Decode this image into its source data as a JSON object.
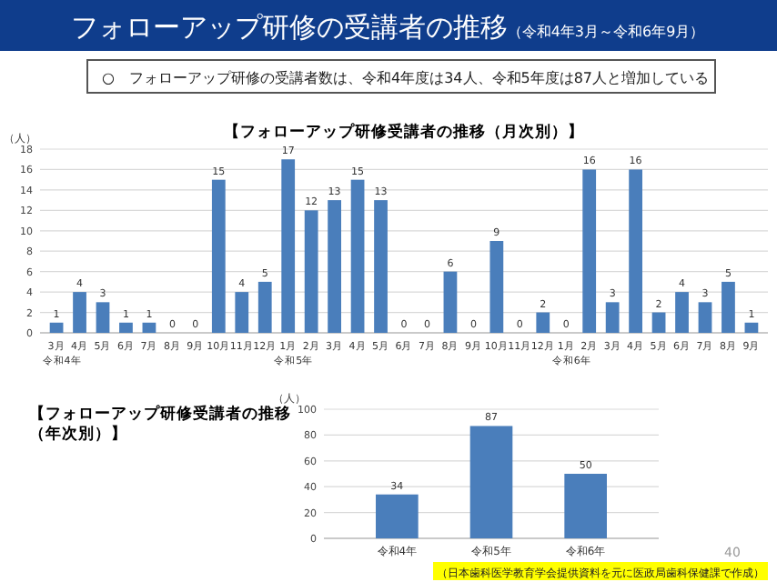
{
  "chart_data": [
    {
      "type": "other",
      "title": "フォローアップ研修の受講者の推移",
      "subtitle": "（令和4年3月～令和6年9月）",
      "annotations": [
        "○　フォローアップ研修の受講者数は、令和4年度は34人、令和5年度は87人と増加している"
      ]
    },
    {
      "type": "bar",
      "title": "【フォローアップ研修受講者の推移（月次別）】",
      "ylabel": "（人）",
      "categories": [
        "3月",
        "4月",
        "5月",
        "6月",
        "7月",
        "8月",
        "9月",
        "10月",
        "11月",
        "12月",
        "1月",
        "2月",
        "3月",
        "4月",
        "5月",
        "6月",
        "7月",
        "8月",
        "9月",
        "10月",
        "11月",
        "12月",
        "1月",
        "2月",
        "3月",
        "4月",
        "5月",
        "6月",
        "7月",
        "8月",
        "9月"
      ],
      "annotations": [
        "令和4年",
        "令和5年",
        "令和6年"
      ],
      "values": [
        1,
        4,
        3,
        1,
        1,
        0,
        0,
        15,
        4,
        5,
        17,
        12,
        13,
        15,
        13,
        0,
        0,
        6,
        0,
        9,
        0,
        2,
        0,
        16,
        3,
        16,
        2,
        4,
        3,
        5,
        1
      ],
      "color": "#4a7ebb",
      "ylim": [
        0,
        18
      ],
      "yticks": [
        0,
        2,
        4,
        6,
        8,
        10,
        12,
        14,
        16,
        18
      ],
      "grid": "y",
      "data_labels": true
    },
    {
      "type": "bar",
      "title": "【フォローアップ研修受講者の推移（年次別）】",
      "ylabel": "（人）",
      "categories": [
        "令和4年",
        "令和5年",
        "令和6年"
      ],
      "values": [
        34,
        87,
        50
      ],
      "color": "#4a7ebb",
      "ylim": [
        0,
        100
      ],
      "yticks": [
        0,
        20,
        40,
        60,
        80,
        100
      ],
      "grid": "y",
      "data_labels": true,
      "annotations": [
        "40",
        "（日本歯科医学教育学会提供資料を元に医政局歯科保健課で作成）"
      ]
    }
  ]
}
